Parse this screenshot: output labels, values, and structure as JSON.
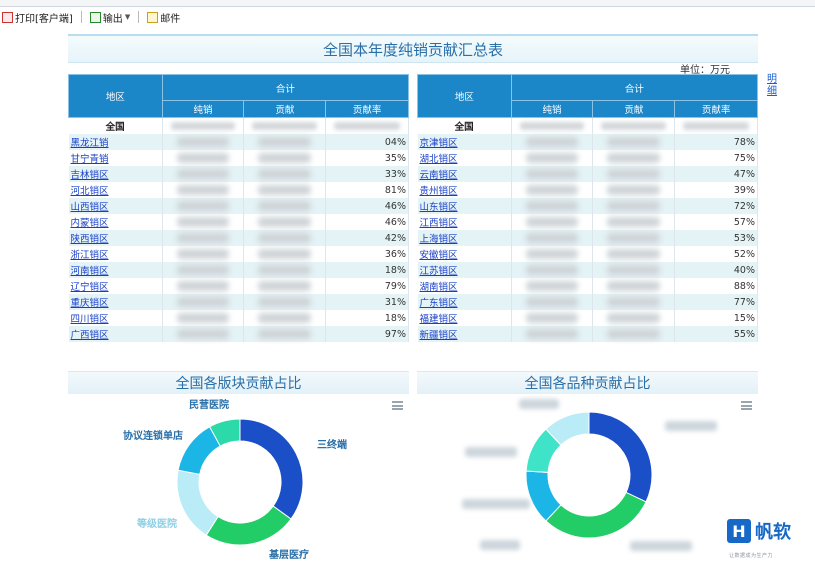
{
  "toolbar": {
    "print_label": "打印[客户端]",
    "export_label": "输出",
    "mail_label": "邮件",
    "print_icon": "printer-icon",
    "export_icon": "export-icon",
    "mail_icon": "mail-icon"
  },
  "report": {
    "title": "全国本年度纯销贡献汇总表",
    "unit": "单位：万元",
    "side_link": "明细"
  },
  "table": {
    "h_region": "地区",
    "h_total": "合计",
    "h_sales": "纯销",
    "h_contrib": "贡献",
    "h_rate": "贡献率",
    "national": "全国",
    "left_rows": [
      {
        "region": "黑龙江销",
        "rate": "04%"
      },
      {
        "region": "甘宁青销",
        "rate": "35%"
      },
      {
        "region": "吉林销区",
        "rate": "33%"
      },
      {
        "region": "河北销区",
        "rate": "81%"
      },
      {
        "region": "山西销区",
        "rate": "46%"
      },
      {
        "region": "内蒙销区",
        "rate": "46%"
      },
      {
        "region": "陕西销区",
        "rate": "42%"
      },
      {
        "region": "浙江销区",
        "rate": "36%"
      },
      {
        "region": "河南销区",
        "rate": "18%"
      },
      {
        "region": "辽宁销区",
        "rate": "79%"
      },
      {
        "region": "重庆销区",
        "rate": "31%"
      },
      {
        "region": "四川销区",
        "rate": "18%"
      },
      {
        "region": "广西销区",
        "rate": "97%"
      }
    ],
    "right_rows": [
      {
        "region": "京津销区",
        "rate": "78%"
      },
      {
        "region": "湖北销区",
        "rate": "75%"
      },
      {
        "region": "云南销区",
        "rate": "47%"
      },
      {
        "region": "贵州销区",
        "rate": "39%"
      },
      {
        "region": "山东销区",
        "rate": "72%"
      },
      {
        "region": "江西销区",
        "rate": "57%"
      },
      {
        "region": "上海销区",
        "rate": "53%"
      },
      {
        "region": "安徽销区",
        "rate": "52%"
      },
      {
        "region": "江苏销区",
        "rate": "40%"
      },
      {
        "region": "湖南销区",
        "rate": "88%"
      },
      {
        "region": "广东销区",
        "rate": "77%"
      },
      {
        "region": "福建销区",
        "rate": "15%"
      },
      {
        "region": "新疆销区",
        "rate": "55%"
      }
    ]
  },
  "charts": {
    "left_title": "全国各版块贡献占比",
    "right_title": "全国各品种贡献占比",
    "menu_icon": "hamburger-menu-icon"
  },
  "chart_data": [
    {
      "type": "pie",
      "title": "全国各版块贡献占比",
      "categories": [
        "三终端",
        "基层医疗",
        "等级医院",
        "协议连锁单店",
        "民营医院"
      ],
      "values": [
        35,
        24,
        19,
        14,
        8
      ],
      "colors": [
        "#1a4fc8",
        "#22cc66",
        "#b9ecf7",
        "#1bb5e6",
        "#2cd9a8"
      ]
    },
    {
      "type": "pie",
      "title": "全国各品种贡献占比",
      "categories": [
        "",
        "",
        "",
        "",
        ""
      ],
      "values": [
        32,
        30,
        14,
        12,
        12
      ],
      "colors": [
        "#1a4fc8",
        "#22cc66",
        "#1bb5e6",
        "#3ee3c8",
        "#b9ecf7"
      ]
    }
  ],
  "brand": {
    "mark": "H",
    "name": "帆软",
    "tagline": "让数据成为生产力"
  }
}
